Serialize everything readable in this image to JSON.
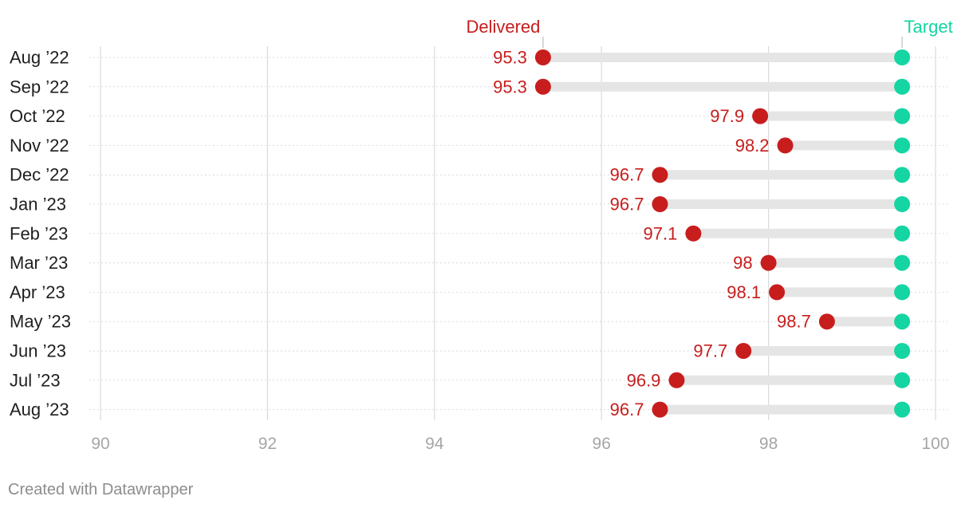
{
  "chart_data": {
    "type": "dumbbell",
    "title": "",
    "xlabel": "",
    "ylabel": "",
    "xlim": [
      90,
      100
    ],
    "x_ticks": [
      90,
      92,
      94,
      96,
      98,
      100
    ],
    "categories": [
      "Aug ’22",
      "Sep ’22",
      "Oct ’22",
      "Nov ’22",
      "Dec ’22",
      "Jan ’23",
      "Feb ’23",
      "Mar ’23",
      "Apr ’23",
      "May ’23",
      "Jun ’23",
      "Jul ’23",
      "Aug ’23"
    ],
    "series": [
      {
        "name": "Delivered",
        "color": "#c71e1d",
        "values": [
          95.3,
          95.3,
          97.9,
          98.2,
          96.7,
          96.7,
          97.1,
          98,
          98.1,
          98.7,
          97.7,
          96.9,
          96.7
        ],
        "labels": [
          "95.3",
          "95.3",
          "97.9",
          "98.2",
          "96.7",
          "96.7",
          "97.1",
          "98",
          "98.1",
          "98.7",
          "97.7",
          "96.9",
          "96.7"
        ]
      },
      {
        "name": "Target",
        "color": "#15d5a2",
        "values": [
          99.6,
          99.6,
          99.6,
          99.6,
          99.6,
          99.6,
          99.6,
          99.6,
          99.6,
          99.6,
          99.6,
          99.6,
          99.6
        ]
      }
    ],
    "range_bar_color": "#e5e5e5",
    "gridlines": true
  },
  "credit": "Created with Datawrapper"
}
